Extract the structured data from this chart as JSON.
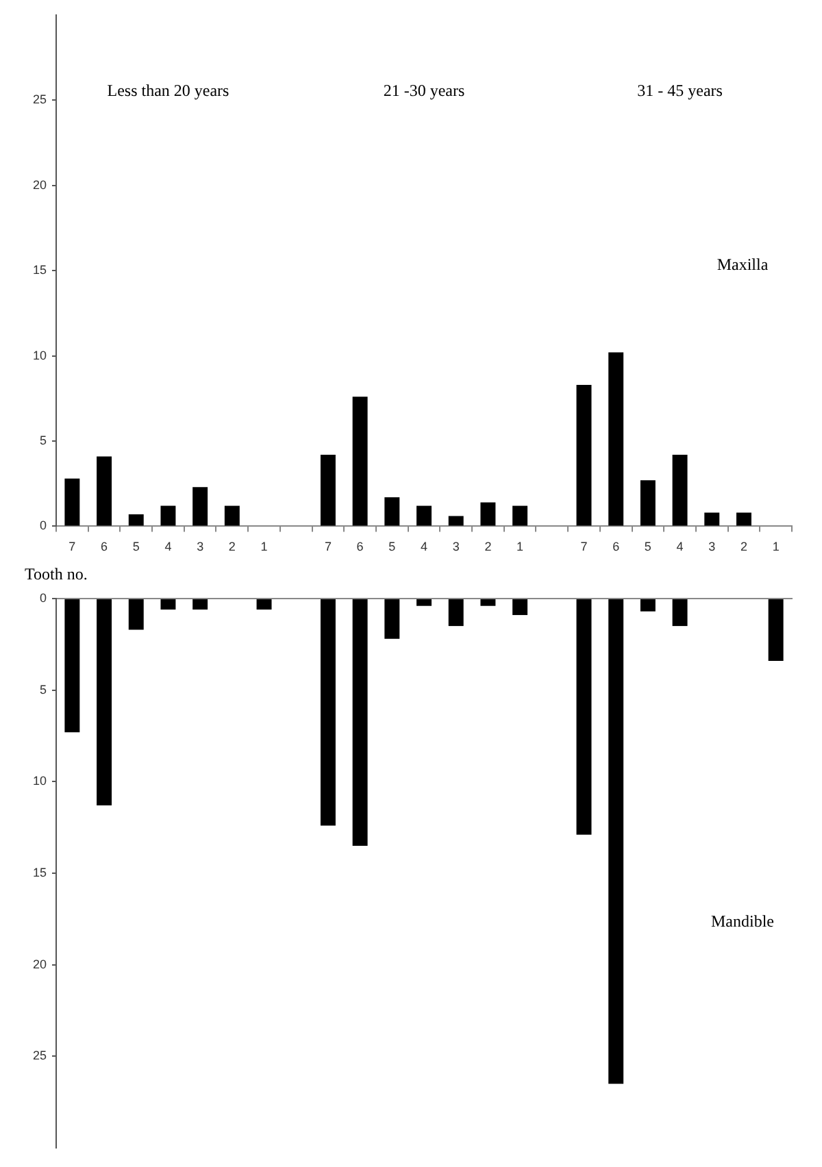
{
  "chart_data": [
    {
      "type": "bar",
      "title": "Maxilla",
      "xlabel": "Tooth no.",
      "annotations": [
        "Less than 20 years",
        "21 -30 years",
        "31 - 45 years"
      ],
      "categories": [
        "7",
        "6",
        "5",
        "4",
        "3",
        "2",
        "1",
        null,
        "7",
        "6",
        "5",
        "4",
        "3",
        "2",
        "1",
        null,
        "7",
        "6",
        "5",
        "4",
        "3",
        "2",
        "1"
      ],
      "values": [
        2.8,
        4.1,
        0.7,
        1.2,
        2.3,
        1.2,
        0,
        null,
        4.2,
        7.6,
        1.7,
        1.2,
        0.6,
        1.4,
        1.2,
        null,
        8.3,
        10.2,
        2.7,
        4.2,
        0.8,
        0.8,
        0
      ],
      "color": "#000000",
      "ylim": [
        0,
        30
      ],
      "yticks": [
        0,
        5,
        10,
        15,
        20,
        25
      ]
    },
    {
      "type": "bar",
      "title": "Mandible",
      "tick_labels": "y",
      "categories": [
        "7",
        "6",
        "5",
        "4",
        "3",
        "2",
        "1",
        null,
        "7",
        "6",
        "5",
        "4",
        "3",
        "2",
        "1",
        null,
        "7",
        "6",
        "5",
        "4",
        "3",
        "2",
        "1"
      ],
      "values": [
        7.3,
        11.3,
        1.7,
        0.6,
        0.6,
        0,
        0.6,
        null,
        12.4,
        13.5,
        2.2,
        0.4,
        1.5,
        0.4,
        0.9,
        null,
        12.9,
        26.5,
        0.7,
        1.5,
        0,
        0,
        3.4
      ],
      "color": "#000000",
      "ylim": [
        30,
        0
      ],
      "yticks": [
        0,
        5,
        10,
        15,
        20,
        25
      ]
    }
  ]
}
